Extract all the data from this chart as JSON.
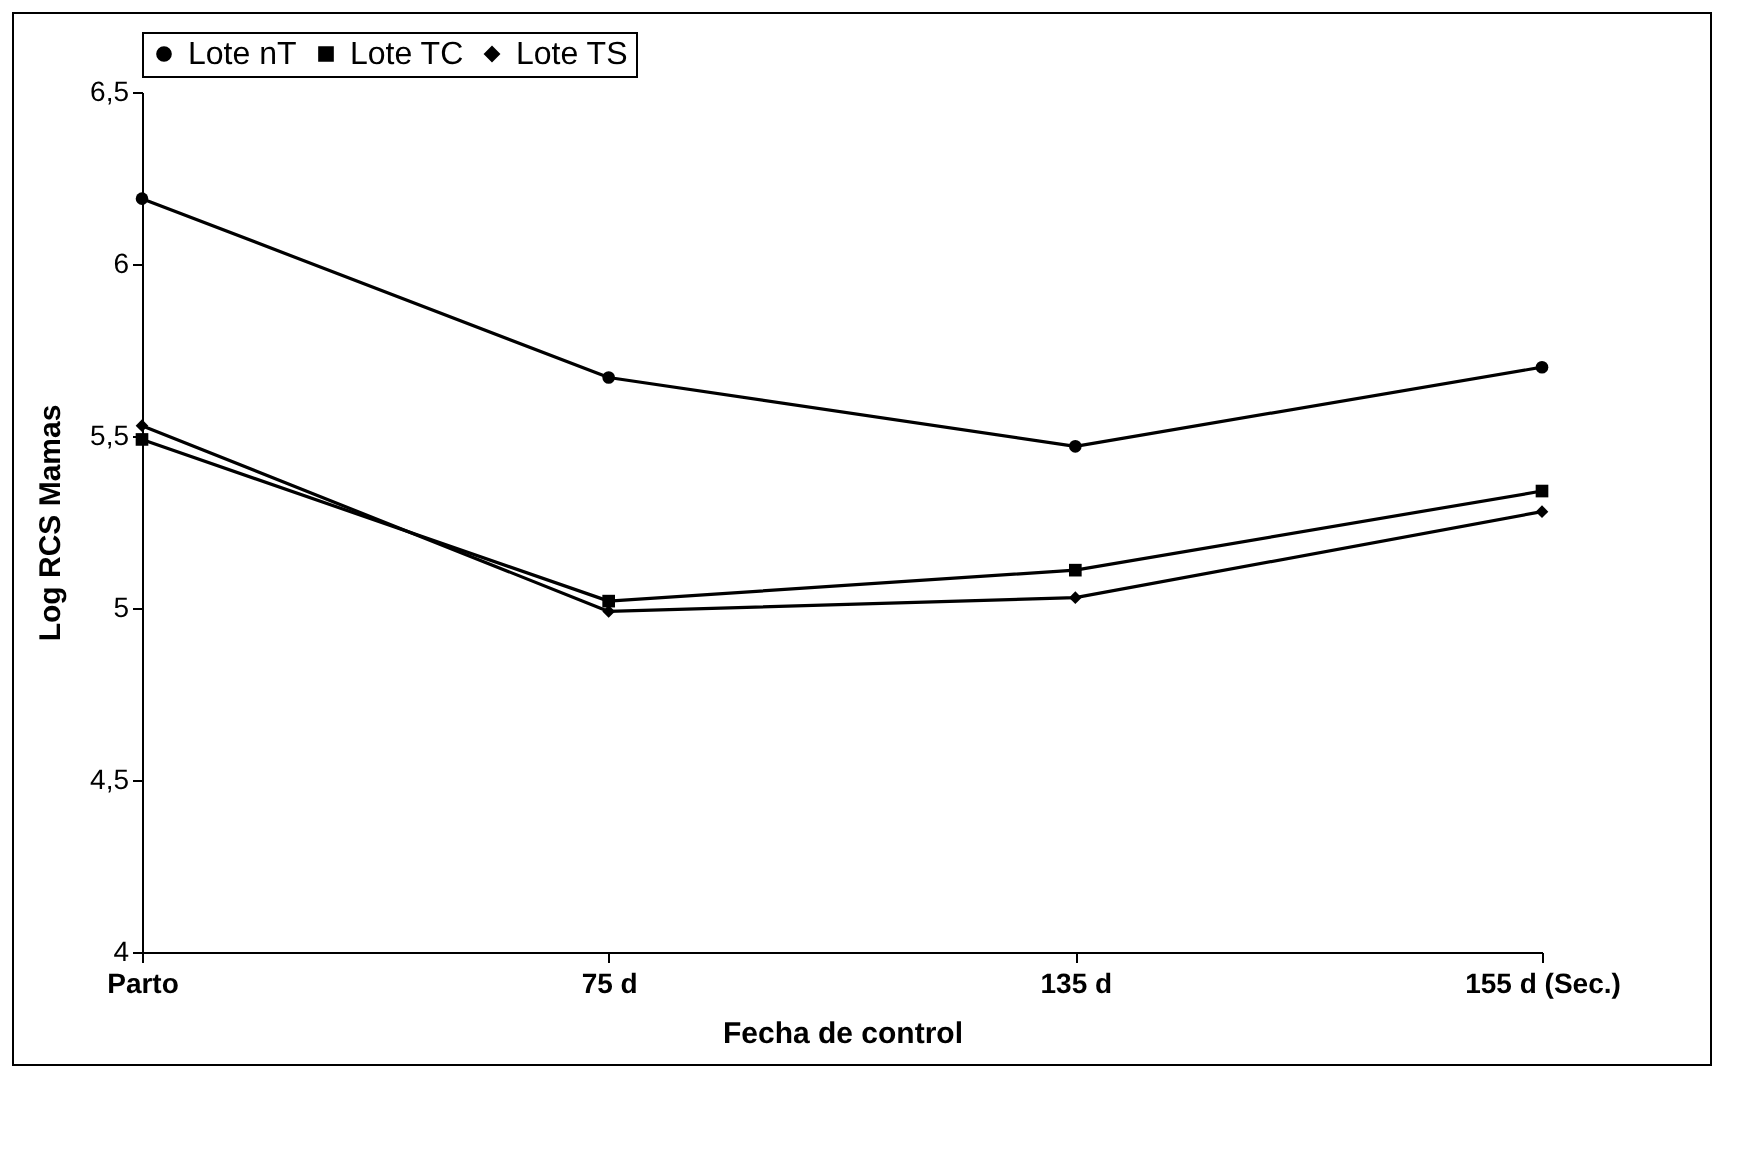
{
  "chart_data": {
    "type": "line",
    "xlabel": "Fecha de control",
    "ylabel": "Log RCS Mamas",
    "categories": [
      "Parto",
      "75 d",
      "135 d",
      "155 d (Sec.)"
    ],
    "series": [
      {
        "name": "Lote nT",
        "color": "#000000",
        "marker": "circle",
        "values": [
          6.19,
          5.67,
          5.47,
          5.7
        ]
      },
      {
        "name": "Lote TC",
        "color": "#000000",
        "marker": "square",
        "values": [
          5.49,
          5.02,
          5.11,
          5.34
        ]
      },
      {
        "name": "Lote TS",
        "color": "#000000",
        "marker": "diamond",
        "values": [
          5.53,
          4.99,
          5.03,
          5.28
        ]
      }
    ],
    "ylim": [
      4,
      6.5
    ],
    "yticks": [
      4,
      {
        "value": 4.5,
        "label": "4,5"
      },
      5,
      {
        "value": 5.5,
        "label": "5,5"
      },
      6,
      {
        "value": 6.5,
        "label": "6,5"
      }
    ],
    "grid": false,
    "legend": "top",
    "line_style": "solid"
  }
}
